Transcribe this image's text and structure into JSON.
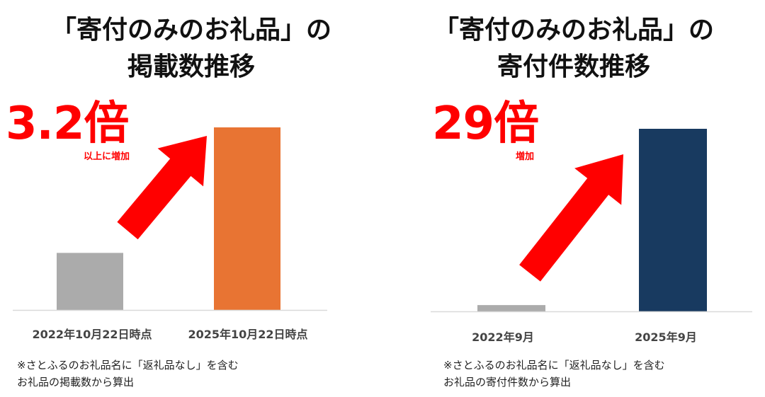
{
  "charts": [
    {
      "title_line1": "「寄付のみのお礼品」の",
      "title_line2": "掲載数推移",
      "highlight": "3.2倍",
      "highlight_sub": "以上に増加",
      "note_line1": "※さとふるのお礼品名に「返礼品なし」を含む",
      "note_line2": "お礼品の掲載数から算出",
      "colors": {
        "before": "#ababab",
        "after": "#e87433",
        "arrow": "#ff0000"
      }
    },
    {
      "title_line1": "「寄付のみのお礼品」の",
      "title_line2": "寄付件数推移",
      "highlight": "29倍",
      "highlight_sub": "増加",
      "note_line1": "※さとふるのお礼品名に「返礼品なし」を含む",
      "note_line2": "お礼品の寄付件数から算出",
      "colors": {
        "before": "#ababab",
        "after": "#183a60",
        "arrow": "#ff0000"
      }
    }
  ],
  "chart_data": [
    {
      "type": "bar",
      "categories": [
        "2022年10月22日時点",
        "2025年10月22日時点"
      ],
      "values": [
        1,
        3.2
      ],
      "title": "「寄付のみのお礼品」の掲載数推移",
      "xlabel": "",
      "ylabel": "",
      "ylim": [
        0,
        3.2
      ],
      "grid": false
    },
    {
      "type": "bar",
      "categories": [
        "2022年9月",
        "2025年9月"
      ],
      "values": [
        1,
        29
      ],
      "title": "「寄付のみのお礼品」の寄付件数推移",
      "xlabel": "",
      "ylabel": "",
      "ylim": [
        0,
        29
      ],
      "grid": false
    }
  ]
}
